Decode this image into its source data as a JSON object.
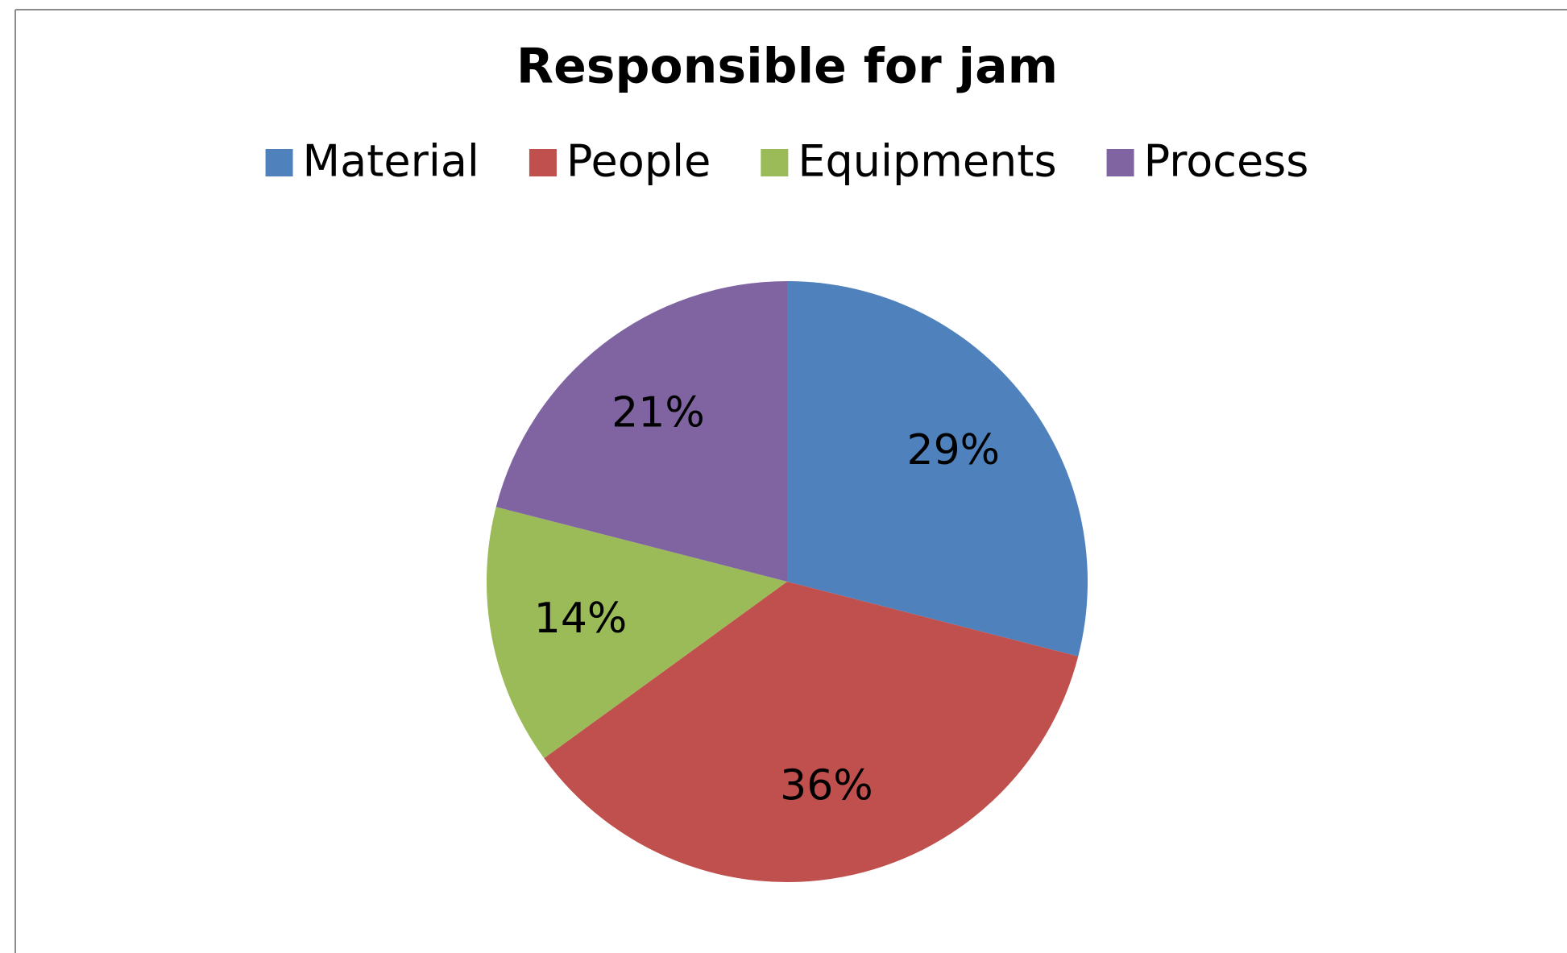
{
  "chart_data": {
    "type": "pie",
    "title": "Responsible for jam",
    "categories": [
      "Material",
      "People",
      "Equipments",
      "Process"
    ],
    "values": [
      29,
      36,
      14,
      21
    ],
    "value_labels": [
      "29%",
      "36%",
      "14%",
      "21%"
    ],
    "colors": [
      "#4f81bd",
      "#c0504d",
      "#9bbb59",
      "#8064a2"
    ],
    "legend": "top"
  }
}
